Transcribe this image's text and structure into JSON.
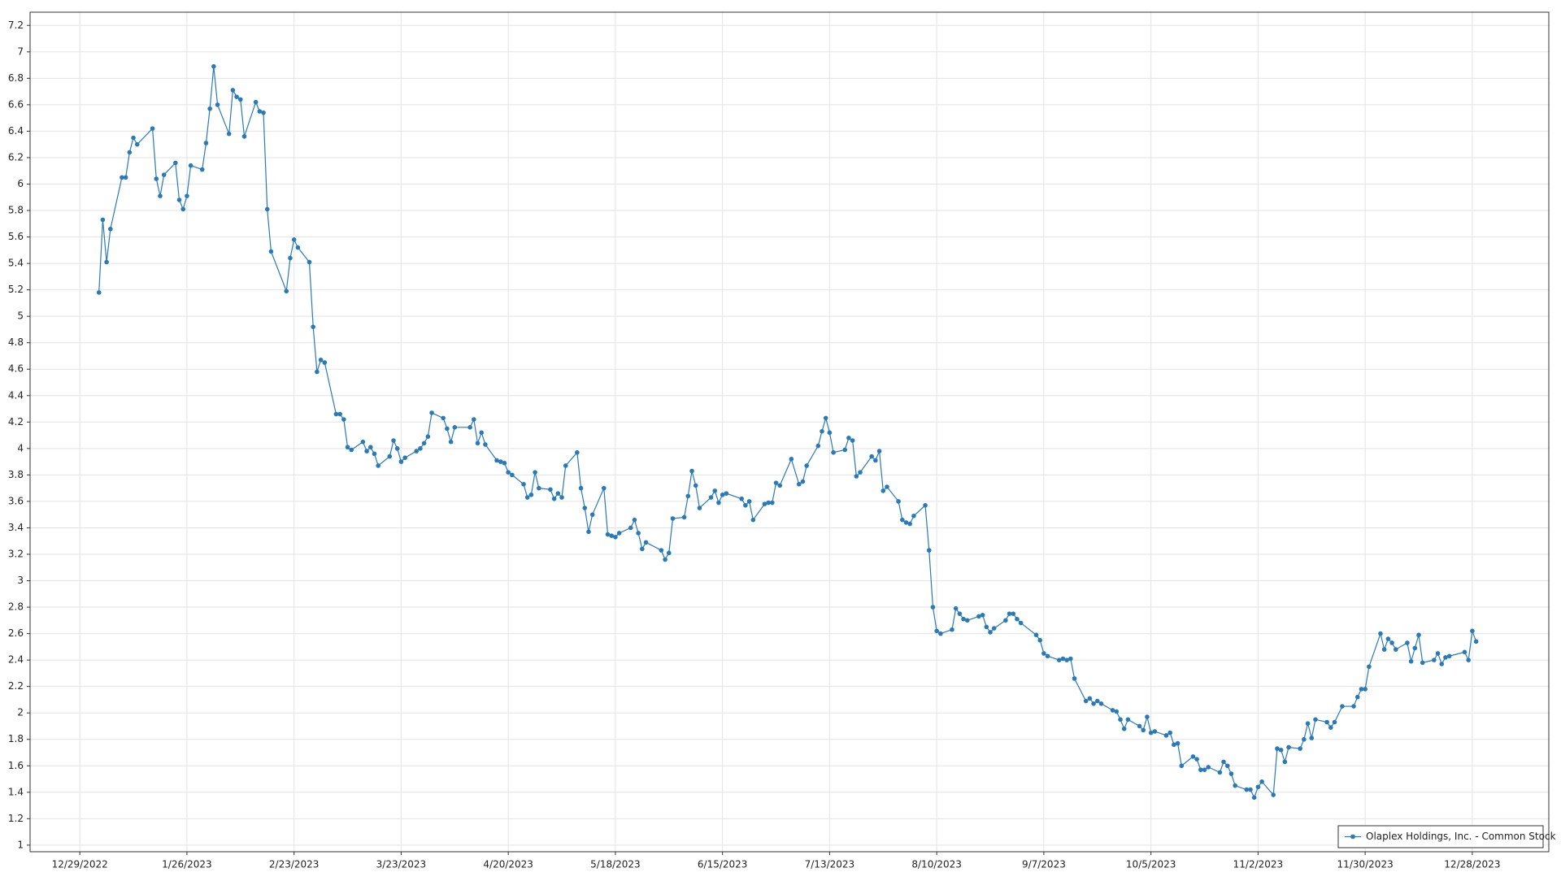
{
  "chart_data": {
    "type": "line",
    "x": [
      "1/3/2023",
      "1/4/2023",
      "1/5/2023",
      "1/6/2023",
      "1/9/2023",
      "1/10/2023",
      "1/11/2023",
      "1/12/2023",
      "1/13/2023",
      "1/17/2023",
      "1/18/2023",
      "1/19/2023",
      "1/20/2023",
      "1/23/2023",
      "1/24/2023",
      "1/25/2023",
      "1/26/2023",
      "1/27/2023",
      "1/30/2023",
      "1/31/2023",
      "2/1/2023",
      "2/2/2023",
      "2/3/2023",
      "2/6/2023",
      "2/7/2023",
      "2/8/2023",
      "2/9/2023",
      "2/10/2023",
      "2/13/2023",
      "2/14/2023",
      "2/15/2023",
      "2/16/2023",
      "2/17/2023",
      "2/21/2023",
      "2/22/2023",
      "2/23/2023",
      "2/24/2023",
      "2/27/2023",
      "2/28/2023",
      "3/1/2023",
      "3/2/2023",
      "3/3/2023",
      "3/6/2023",
      "3/7/2023",
      "3/8/2023",
      "3/9/2023",
      "3/10/2023",
      "3/13/2023",
      "3/14/2023",
      "3/15/2023",
      "3/16/2023",
      "3/17/2023",
      "3/20/2023",
      "3/21/2023",
      "3/22/2023",
      "3/23/2023",
      "3/24/2023",
      "3/27/2023",
      "3/28/2023",
      "3/29/2023",
      "3/30/2023",
      "3/31/2023",
      "4/3/2023",
      "4/4/2023",
      "4/5/2023",
      "4/6/2023",
      "4/10/2023",
      "4/11/2023",
      "4/12/2023",
      "4/13/2023",
      "4/14/2023",
      "4/17/2023",
      "4/18/2023",
      "4/19/2023",
      "4/20/2023",
      "4/21/2023",
      "4/24/2023",
      "4/25/2023",
      "4/26/2023",
      "4/27/2023",
      "4/28/2023",
      "5/1/2023",
      "5/2/2023",
      "5/3/2023",
      "5/4/2023",
      "5/5/2023",
      "5/8/2023",
      "5/9/2023",
      "5/10/2023",
      "5/11/2023",
      "5/12/2023",
      "5/15/2023",
      "5/16/2023",
      "5/17/2023",
      "5/18/2023",
      "5/19/2023",
      "5/22/2023",
      "5/23/2023",
      "5/24/2023",
      "5/25/2023",
      "5/26/2023",
      "5/30/2023",
      "5/31/2023",
      "6/1/2023",
      "6/2/2023",
      "6/5/2023",
      "6/6/2023",
      "6/7/2023",
      "6/8/2023",
      "6/9/2023",
      "6/12/2023",
      "6/13/2023",
      "6/14/2023",
      "6/15/2023",
      "6/16/2023",
      "6/20/2023",
      "6/21/2023",
      "6/22/2023",
      "6/23/2023",
      "6/26/2023",
      "6/27/2023",
      "6/28/2023",
      "6/29/2023",
      "6/30/2023",
      "7/3/2023",
      "7/5/2023",
      "7/6/2023",
      "7/7/2023",
      "7/10/2023",
      "7/11/2023",
      "7/12/2023",
      "7/13/2023",
      "7/14/2023",
      "7/17/2023",
      "7/18/2023",
      "7/19/2023",
      "7/20/2023",
      "7/21/2023",
      "7/24/2023",
      "7/25/2023",
      "7/26/2023",
      "7/27/2023",
      "7/28/2023",
      "7/31/2023",
      "8/1/2023",
      "8/2/2023",
      "8/3/2023",
      "8/4/2023",
      "8/7/2023",
      "8/8/2023",
      "8/9/2023",
      "8/10/2023",
      "8/11/2023",
      "8/14/2023",
      "8/15/2023",
      "8/16/2023",
      "8/17/2023",
      "8/18/2023",
      "8/21/2023",
      "8/22/2023",
      "8/23/2023",
      "8/24/2023",
      "8/25/2023",
      "8/28/2023",
      "8/29/2023",
      "8/30/2023",
      "8/31/2023",
      "9/1/2023",
      "9/5/2023",
      "9/6/2023",
      "9/7/2023",
      "9/8/2023",
      "9/11/2023",
      "9/12/2023",
      "9/13/2023",
      "9/14/2023",
      "9/15/2023",
      "9/18/2023",
      "9/19/2023",
      "9/20/2023",
      "9/21/2023",
      "9/22/2023",
      "9/25/2023",
      "9/26/2023",
      "9/27/2023",
      "9/28/2023",
      "9/29/2023",
      "10/2/2023",
      "10/3/2023",
      "10/4/2023",
      "10/5/2023",
      "10/6/2023",
      "10/9/2023",
      "10/10/2023",
      "10/11/2023",
      "10/12/2023",
      "10/13/2023",
      "10/16/2023",
      "10/17/2023",
      "10/18/2023",
      "10/19/2023",
      "10/20/2023",
      "10/23/2023",
      "10/24/2023",
      "10/25/2023",
      "10/26/2023",
      "10/27/2023",
      "10/30/2023",
      "10/31/2023",
      "11/1/2023",
      "11/2/2023",
      "11/3/2023",
      "11/6/2023",
      "11/7/2023",
      "11/8/2023",
      "11/9/2023",
      "11/10/2023",
      "11/13/2023",
      "11/14/2023",
      "11/15/2023",
      "11/16/2023",
      "11/17/2023",
      "11/20/2023",
      "11/21/2023",
      "11/22/2023",
      "11/24/2023",
      "11/27/2023",
      "11/28/2023",
      "11/29/2023",
      "11/30/2023",
      "12/1/2023",
      "12/4/2023",
      "12/5/2023",
      "12/6/2023",
      "12/7/2023",
      "12/8/2023",
      "12/11/2023",
      "12/12/2023",
      "12/13/2023",
      "12/14/2023",
      "12/15/2023",
      "12/18/2023",
      "12/19/2023",
      "12/20/2023",
      "12/21/2023",
      "12/22/2023",
      "12/26/2023",
      "12/27/2023",
      "12/28/2023",
      "12/29/2023"
    ],
    "series": [
      {
        "name": "Olaplex Holdings, Inc. - Common Stock",
        "color": "#2a7ab8",
        "values": [
          5.18,
          5.73,
          5.41,
          5.66,
          6.05,
          6.05,
          6.24,
          6.35,
          6.3,
          6.42,
          6.04,
          5.91,
          6.07,
          6.16,
          5.88,
          5.81,
          5.91,
          6.14,
          6.11,
          6.31,
          6.57,
          6.89,
          6.6,
          6.38,
          6.71,
          6.66,
          6.64,
          6.36,
          6.62,
          6.55,
          6.54,
          5.81,
          5.49,
          5.19,
          5.44,
          5.58,
          5.52,
          5.41,
          4.92,
          4.58,
          4.67,
          4.65,
          4.26,
          4.26,
          4.22,
          4.01,
          3.99,
          4.05,
          3.98,
          4.01,
          3.96,
          3.87,
          3.94,
          4.06,
          4.0,
          3.9,
          3.93,
          3.98,
          4.0,
          4.04,
          4.09,
          4.27,
          4.23,
          4.15,
          4.05,
          4.16,
          4.16,
          4.22,
          4.04,
          4.12,
          4.03,
          3.91,
          3.9,
          3.89,
          3.82,
          3.8,
          3.73,
          3.63,
          3.65,
          3.82,
          3.7,
          3.69,
          3.62,
          3.66,
          3.63,
          3.87,
          3.97,
          3.7,
          3.55,
          3.37,
          3.5,
          3.7,
          3.35,
          3.34,
          3.33,
          3.36,
          3.4,
          3.46,
          3.36,
          3.24,
          3.29,
          3.23,
          3.16,
          3.21,
          3.47,
          3.48,
          3.64,
          3.83,
          3.72,
          3.55,
          3.63,
          3.68,
          3.59,
          3.65,
          3.66,
          3.62,
          3.57,
          3.6,
          3.46,
          3.58,
          3.59,
          3.59,
          3.74,
          3.72,
          3.92,
          3.73,
          3.75,
          3.87,
          4.02,
          4.13,
          4.23,
          4.12,
          3.97,
          3.99,
          4.08,
          4.06,
          3.79,
          3.82,
          3.94,
          3.91,
          3.98,
          3.68,
          3.71,
          3.6,
          3.46,
          3.44,
          3.43,
          3.49,
          3.57,
          3.23,
          2.8,
          2.62,
          2.6,
          2.63,
          2.79,
          2.75,
          2.71,
          2.7,
          2.73,
          2.74,
          2.65,
          2.61,
          2.64,
          2.7,
          2.75,
          2.75,
          2.71,
          2.68,
          2.59,
          2.55,
          2.45,
          2.43,
          2.4,
          2.41,
          2.4,
          2.41,
          2.26,
          2.09,
          2.11,
          2.07,
          2.09,
          2.07,
          2.02,
          2.01,
          1.95,
          1.88,
          1.95,
          1.9,
          1.87,
          1.97,
          1.85,
          1.86,
          1.83,
          1.85,
          1.76,
          1.77,
          1.6,
          1.67,
          1.65,
          1.57,
          1.57,
          1.59,
          1.55,
          1.63,
          1.6,
          1.54,
          1.45,
          1.42,
          1.42,
          1.36,
          1.44,
          1.48,
          1.38,
          1.73,
          1.72,
          1.63,
          1.74,
          1.73,
          1.8,
          1.92,
          1.81,
          1.95,
          1.93,
          1.89,
          1.93,
          2.05,
          2.05,
          2.12,
          2.18,
          2.18,
          2.35,
          2.6,
          2.48,
          2.56,
          2.53,
          2.48,
          2.53,
          2.39,
          2.49,
          2.59,
          2.38,
          2.4,
          2.45,
          2.37,
          2.42,
          2.43,
          2.46,
          2.4,
          2.62,
          2.54
        ]
      }
    ],
    "xlim": [
      "12/16/2022",
      "1/17/2024"
    ],
    "xticks": [
      "12/29/2022",
      "1/26/2023",
      "2/23/2023",
      "3/23/2023",
      "4/20/2023",
      "5/18/2023",
      "6/15/2023",
      "7/13/2023",
      "8/10/2023",
      "9/7/2023",
      "10/5/2023",
      "11/2/2023",
      "11/30/2023",
      "12/28/2023"
    ],
    "ylim": [
      0.95,
      7.3
    ],
    "yticks": [
      1,
      1.2,
      1.4,
      1.6,
      1.8,
      2,
      2.2,
      2.4,
      2.6,
      2.8,
      3,
      3.2,
      3.4,
      3.6,
      3.8,
      4,
      4.2,
      4.4,
      4.6,
      4.8,
      5,
      5.2,
      5.4,
      5.6,
      5.8,
      6,
      6.2,
      6.4,
      6.6,
      6.8,
      7,
      7.2
    ],
    "grid": true,
    "legend": "lower right"
  }
}
